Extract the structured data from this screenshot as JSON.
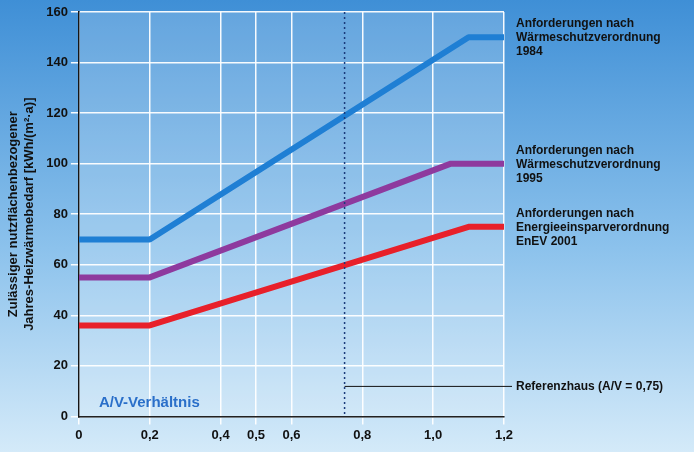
{
  "chart_data": {
    "type": "line",
    "y_label": "Zulässiger nutzflächenbezogener Jahres-Heizwärmebedarf [kWh/(m²·a)]",
    "x_label": "A/V-Verhältnis",
    "xlim": [
      0,
      1.2
    ],
    "xticks": [
      0,
      {
        "value": 0.2,
        "label": "0,2"
      },
      {
        "value": 0.4,
        "label": "0,4"
      },
      {
        "value": 0.5,
        "label": "0,5"
      },
      {
        "value": 0.6,
        "label": "0,6"
      },
      {
        "value": 0.8,
        "label": "0,8"
      },
      {
        "value": 1.0,
        "label": "1,0"
      },
      {
        "value": 1.2,
        "label": "1,2"
      }
    ],
    "ylim": [
      0,
      160
    ],
    "yticks": [
      0,
      20,
      40,
      60,
      80,
      100,
      120,
      140,
      160
    ],
    "grid": true,
    "series": [
      {
        "name": "Anforderungen nach Wärmeschutzverordnung 1984",
        "color": "#1f7fd4",
        "x": [
          0,
          0.2,
          1.1,
          1.2
        ],
        "values": [
          70,
          70,
          150,
          150
        ]
      },
      {
        "name": "Anforderungen nach Wärmeschutzverordnung 1995",
        "color": "#8e3a9e",
        "x": [
          0,
          0.2,
          1.05,
          1.2
        ],
        "values": [
          55,
          55,
          100,
          100
        ]
      },
      {
        "name": "Anforderungen nach Energieeinsparverordnung EnEV 2001",
        "color": "#e8202a",
        "x": [
          0,
          0.2,
          1.1,
          1.2
        ],
        "values": [
          36,
          36,
          75,
          75
        ]
      }
    ],
    "reference_line": {
      "x": 0.75,
      "label": "Referenzhaus (A/V = 0,75)",
      "line_style": "dotted"
    }
  }
}
